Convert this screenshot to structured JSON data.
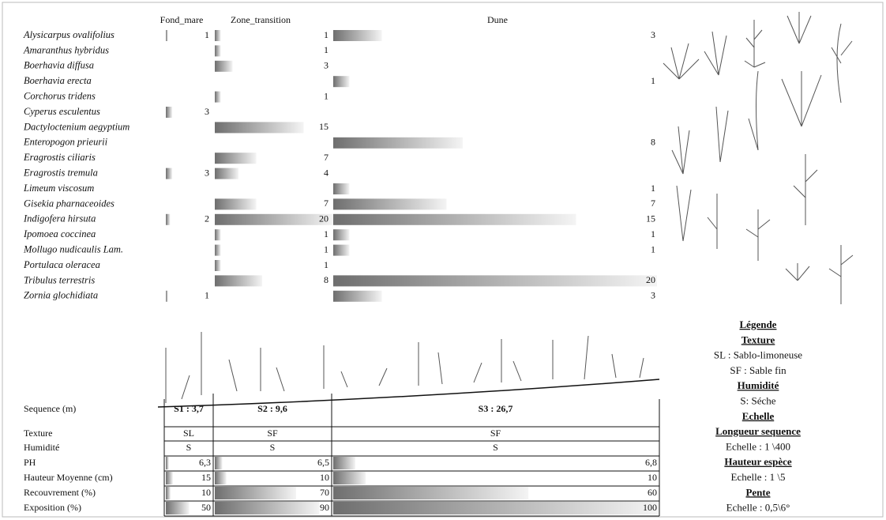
{
  "species_chart": {
    "columns": [
      "Fond_mare",
      "Zone_transition",
      "Dune"
    ],
    "species": [
      "Alysicarpus ovalifolius",
      "Amaranthus hybridus",
      "Boerhavia diffusa",
      "Boerhavia erecta",
      "Corchorus tridens",
      "Cyperus esculentus",
      "Dactyloctenium aegyptium",
      "Enteropogon prieurii",
      "Eragrostis ciliaris",
      "Eragrostis tremula",
      "Limeum viscosum",
      "Gisekia pharnaceoides",
      "Indigofera hirsuta",
      "Ipomoea coccinea",
      "Mollugo nudicaulis Lam.",
      "Portulaca oleracea",
      "Tribulus terrestris",
      "Zornia glochidiata"
    ],
    "series": [
      {
        "name": "Fond_mare",
        "values": [
          1,
          null,
          null,
          null,
          null,
          3,
          null,
          null,
          null,
          3,
          null,
          null,
          2,
          null,
          null,
          null,
          null,
          1
        ]
      },
      {
        "name": "Zone_transition",
        "values": [
          1,
          1,
          3,
          null,
          1,
          null,
          15,
          null,
          7,
          4,
          null,
          7,
          20,
          1,
          1,
          1,
          8,
          null
        ]
      },
      {
        "name": "Dune",
        "values": [
          3,
          null,
          null,
          1,
          null,
          null,
          null,
          8,
          null,
          null,
          1,
          7,
          15,
          1,
          1,
          null,
          20,
          3
        ]
      }
    ]
  },
  "sequence_table": {
    "row_labels": [
      "Sequence (m)",
      "Texture",
      "Humidité",
      "PH",
      "Hauteur Moyenne (cm)",
      "Recouvrement (%)",
      "Exposition (%)"
    ],
    "sequences": [
      "S1 : 3,7",
      "S2 : 9,6",
      "S3 : 26,7"
    ],
    "texture": [
      "SL",
      "SF",
      "SF"
    ],
    "humidite": [
      "S",
      "S",
      "S"
    ],
    "ph": [
      {
        "value": 6.3,
        "label": "6,3"
      },
      {
        "value": 6.5,
        "label": "6,5"
      },
      {
        "value": 6.8,
        "label": "6,8"
      }
    ],
    "hauteur": [
      15,
      10,
      10
    ],
    "recouvrement": [
      10,
      70,
      60
    ],
    "exposition": [
      50,
      90,
      100
    ]
  },
  "legend": {
    "title": "Légende",
    "sections": [
      {
        "heading": "Texture",
        "lines": [
          "SL : Sablo-limoneuse",
          "SF : Sable fin"
        ]
      },
      {
        "heading": "Humidité",
        "lines": [
          "S: Séche"
        ]
      },
      {
        "heading": "Echelle",
        "lines": []
      },
      {
        "heading": "Longueur sequence",
        "lines": [
          "Echelle : 1 \\400"
        ]
      },
      {
        "heading": "Hauteur espèce",
        "lines": [
          "Echelle : 1 \\5"
        ]
      },
      {
        "heading": "Pente",
        "lines": [
          "Echelle : 0,5\\6°"
        ]
      }
    ]
  }
}
